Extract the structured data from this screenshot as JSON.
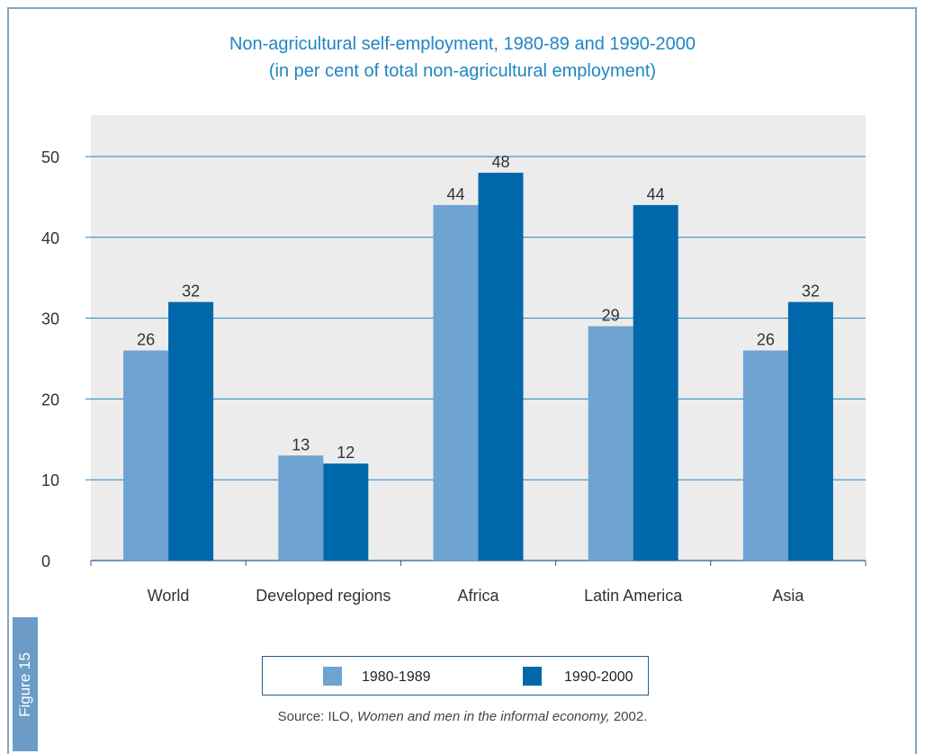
{
  "figure_label": "Figure 15",
  "title_line1": "Non-agricultural self-employment, 1980-89 and 1990-2000",
  "title_line2": "(in per cent of total non-agricultural employment)",
  "legend": [
    "1980-1989",
    "1990-2000"
  ],
  "source": {
    "prefix": "Source: ILO, ",
    "title": "Women and men in the informal economy,",
    "suffix": " 2002."
  },
  "colors": {
    "series1": "#6fa3d2",
    "series2": "#0068aa",
    "title": "#1f86c3",
    "plot_bg": "#ececec",
    "grid": "#1f86c3"
  },
  "chart_data": {
    "type": "bar",
    "categories": [
      "World",
      "Developed regions",
      "Africa",
      "Latin America",
      "Asia"
    ],
    "series": [
      {
        "name": "1980-1989",
        "values": [
          26,
          13,
          44,
          29,
          26
        ]
      },
      {
        "name": "1990-2000",
        "values": [
          32,
          12,
          48,
          44,
          32
        ]
      }
    ],
    "ylim": [
      0,
      50
    ],
    "yticks": [
      0,
      10,
      20,
      30,
      40,
      50
    ],
    "grid": true,
    "legend_position": "bottom",
    "data_labels": true
  }
}
